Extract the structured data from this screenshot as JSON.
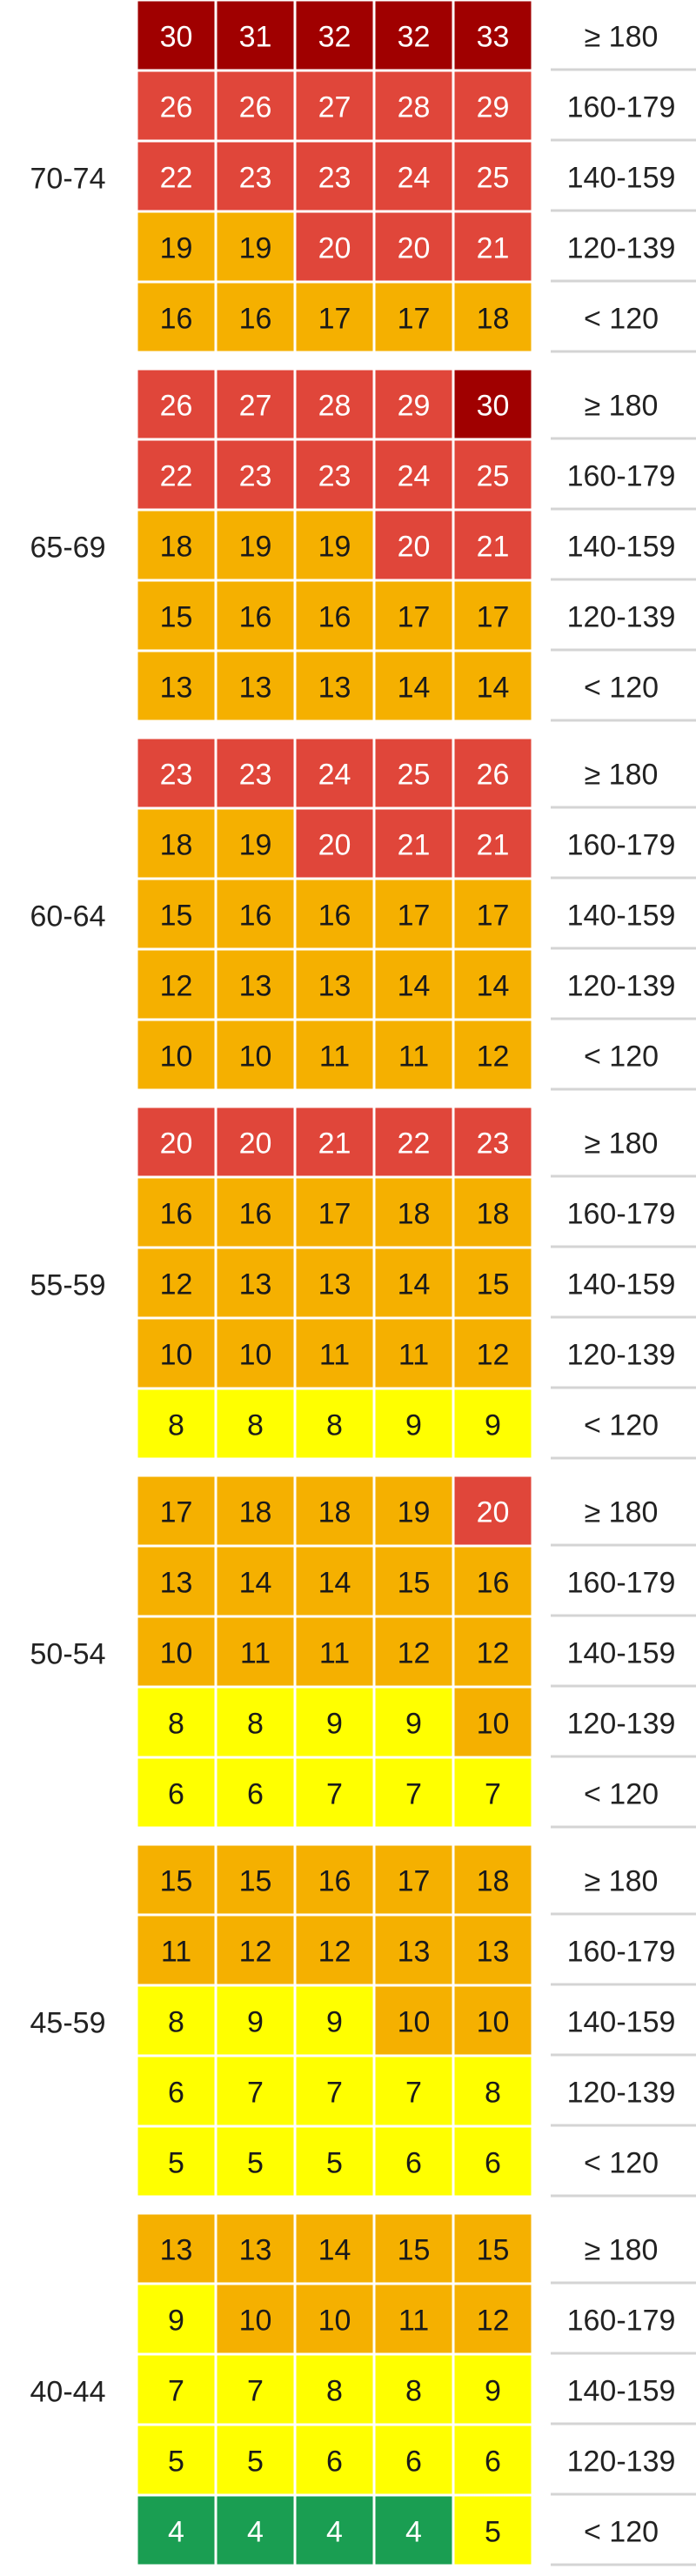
{
  "chart_data": {
    "type": "heatmap",
    "row_labels": [
      "≥ 180",
      "160-179",
      "140-159",
      "120-139",
      "< 120"
    ],
    "colors": {
      "green": "#1a9e52",
      "yellow": "#ffff00",
      "orange": "#f5b000",
      "red": "#e0463a",
      "darkred": "#a00000"
    },
    "groups": [
      {
        "label": "70-74",
        "values": [
          [
            30,
            31,
            32,
            32,
            33
          ],
          [
            26,
            26,
            27,
            28,
            29
          ],
          [
            22,
            23,
            23,
            24,
            25
          ],
          [
            19,
            19,
            20,
            20,
            21
          ],
          [
            16,
            16,
            17,
            17,
            18
          ]
        ],
        "colors": [
          [
            "darkred",
            "darkred",
            "darkred",
            "darkred",
            "darkred"
          ],
          [
            "red",
            "red",
            "red",
            "red",
            "red"
          ],
          [
            "red",
            "red",
            "red",
            "red",
            "red"
          ],
          [
            "orange",
            "orange",
            "red",
            "red",
            "red"
          ],
          [
            "orange",
            "orange",
            "orange",
            "orange",
            "orange"
          ]
        ]
      },
      {
        "label": "65-69",
        "values": [
          [
            26,
            27,
            28,
            29,
            30
          ],
          [
            22,
            23,
            23,
            24,
            25
          ],
          [
            18,
            19,
            19,
            20,
            21
          ],
          [
            15,
            16,
            16,
            17,
            17
          ],
          [
            13,
            13,
            13,
            14,
            14
          ]
        ],
        "colors": [
          [
            "red",
            "red",
            "red",
            "red",
            "darkred"
          ],
          [
            "red",
            "red",
            "red",
            "red",
            "red"
          ],
          [
            "orange",
            "orange",
            "orange",
            "red",
            "red"
          ],
          [
            "orange",
            "orange",
            "orange",
            "orange",
            "orange"
          ],
          [
            "orange",
            "orange",
            "orange",
            "orange",
            "orange"
          ]
        ]
      },
      {
        "label": "60-64",
        "values": [
          [
            23,
            23,
            24,
            25,
            26
          ],
          [
            18,
            19,
            20,
            21,
            21
          ],
          [
            15,
            16,
            16,
            17,
            17
          ],
          [
            12,
            13,
            13,
            14,
            14
          ],
          [
            10,
            10,
            11,
            11,
            12
          ]
        ],
        "colors": [
          [
            "red",
            "red",
            "red",
            "red",
            "red"
          ],
          [
            "orange",
            "orange",
            "red",
            "red",
            "red"
          ],
          [
            "orange",
            "orange",
            "orange",
            "orange",
            "orange"
          ],
          [
            "orange",
            "orange",
            "orange",
            "orange",
            "orange"
          ],
          [
            "orange",
            "orange",
            "orange",
            "orange",
            "orange"
          ]
        ]
      },
      {
        "label": "55-59",
        "values": [
          [
            20,
            20,
            21,
            22,
            23
          ],
          [
            16,
            16,
            17,
            18,
            18
          ],
          [
            12,
            13,
            13,
            14,
            15
          ],
          [
            10,
            10,
            11,
            11,
            12
          ],
          [
            8,
            8,
            8,
            9,
            9
          ]
        ],
        "colors": [
          [
            "red",
            "red",
            "red",
            "red",
            "red"
          ],
          [
            "orange",
            "orange",
            "orange",
            "orange",
            "orange"
          ],
          [
            "orange",
            "orange",
            "orange",
            "orange",
            "orange"
          ],
          [
            "orange",
            "orange",
            "orange",
            "orange",
            "orange"
          ],
          [
            "yellow",
            "yellow",
            "yellow",
            "yellow",
            "yellow"
          ]
        ]
      },
      {
        "label": "50-54",
        "values": [
          [
            17,
            18,
            18,
            19,
            20
          ],
          [
            13,
            14,
            14,
            15,
            16
          ],
          [
            10,
            11,
            11,
            12,
            12
          ],
          [
            8,
            8,
            9,
            9,
            10
          ],
          [
            6,
            6,
            7,
            7,
            7
          ]
        ],
        "colors": [
          [
            "orange",
            "orange",
            "orange",
            "orange",
            "red"
          ],
          [
            "orange",
            "orange",
            "orange",
            "orange",
            "orange"
          ],
          [
            "orange",
            "orange",
            "orange",
            "orange",
            "orange"
          ],
          [
            "yellow",
            "yellow",
            "yellow",
            "yellow",
            "orange"
          ],
          [
            "yellow",
            "yellow",
            "yellow",
            "yellow",
            "yellow"
          ]
        ]
      },
      {
        "label": "45-59",
        "values": [
          [
            15,
            15,
            16,
            17,
            18
          ],
          [
            11,
            12,
            12,
            13,
            13
          ],
          [
            8,
            9,
            9,
            10,
            10
          ],
          [
            6,
            7,
            7,
            7,
            8
          ],
          [
            5,
            5,
            5,
            6,
            6
          ]
        ],
        "colors": [
          [
            "orange",
            "orange",
            "orange",
            "orange",
            "orange"
          ],
          [
            "orange",
            "orange",
            "orange",
            "orange",
            "orange"
          ],
          [
            "yellow",
            "yellow",
            "yellow",
            "orange",
            "orange"
          ],
          [
            "yellow",
            "yellow",
            "yellow",
            "yellow",
            "yellow"
          ],
          [
            "yellow",
            "yellow",
            "yellow",
            "yellow",
            "yellow"
          ]
        ]
      },
      {
        "label": "40-44",
        "values": [
          [
            13,
            13,
            14,
            15,
            15
          ],
          [
            9,
            10,
            10,
            11,
            12
          ],
          [
            7,
            7,
            8,
            8,
            9
          ],
          [
            5,
            5,
            6,
            6,
            6
          ],
          [
            4,
            4,
            4,
            4,
            5
          ]
        ],
        "colors": [
          [
            "orange",
            "orange",
            "orange",
            "orange",
            "orange"
          ],
          [
            "yellow",
            "orange",
            "orange",
            "orange",
            "orange"
          ],
          [
            "yellow",
            "yellow",
            "yellow",
            "yellow",
            "yellow"
          ],
          [
            "yellow",
            "yellow",
            "yellow",
            "yellow",
            "yellow"
          ],
          [
            "green",
            "green",
            "green",
            "green",
            "yellow"
          ]
        ]
      }
    ]
  }
}
